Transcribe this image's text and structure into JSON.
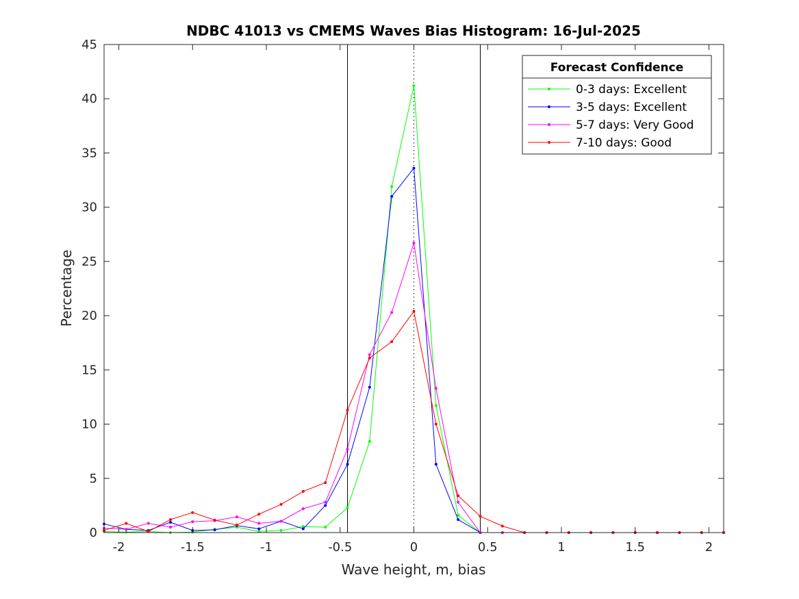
{
  "chart_data": {
    "type": "line",
    "title": "NDBC 41013 vs CMEMS Waves Bias Histogram: 16-Jul-2025",
    "xlabel": "Wave height, m, bias",
    "ylabel": "Percentage",
    "xlim": [
      -2.1,
      2.1
    ],
    "ylim": [
      0,
      45
    ],
    "xticks": [
      -2,
      -1.5,
      -1,
      -0.5,
      0,
      0.5,
      1,
      1.5,
      2
    ],
    "xtick_labels": [
      "-2",
      "-1.5",
      "-1",
      "-0.5",
      "0",
      "0.5",
      "1",
      "1.5",
      "2"
    ],
    "yticks": [
      0,
      5,
      10,
      15,
      20,
      25,
      30,
      35,
      40,
      45
    ],
    "ytick_labels": [
      "0",
      "5",
      "10",
      "15",
      "20",
      "25",
      "30",
      "35",
      "40",
      "45"
    ],
    "grid": false,
    "reference_lines": [
      {
        "x": -0.45,
        "style": "solid"
      },
      {
        "x": 0,
        "style": "dotted"
      },
      {
        "x": 0.45,
        "style": "solid"
      }
    ],
    "legend": {
      "title": "Forecast Confidence",
      "placement": "top-right"
    },
    "x": [
      -2.1,
      -1.95,
      -1.8,
      -1.65,
      -1.5,
      -1.35,
      -1.2,
      -1.05,
      -0.9,
      -0.75,
      -0.6,
      -0.45,
      -0.3,
      -0.15,
      0,
      0.15,
      0.3,
      0.45,
      0.6,
      0.75,
      0.9,
      1.05,
      1.2,
      1.35,
      1.5,
      1.65,
      1.8,
      1.95,
      2.1
    ],
    "series": [
      {
        "name": "0-3 days: Excellent",
        "color": "#00ff00",
        "values": [
          0.1,
          0.05,
          0.1,
          0.0,
          0.05,
          0.3,
          0.5,
          0.1,
          0.2,
          0.55,
          0.5,
          2.3,
          8.4,
          31.9,
          41.2,
          11.7,
          1.6,
          0.0,
          0.0,
          0.0,
          0.0,
          0.0,
          0.0,
          0.0,
          0.0,
          0.0,
          0.0,
          0.0,
          0.0
        ]
      },
      {
        "name": "3-5 days: Excellent",
        "color": "#0000ff",
        "values": [
          0.8,
          0.3,
          0.2,
          0.95,
          0.2,
          0.25,
          0.65,
          0.35,
          1.05,
          0.35,
          2.5,
          6.3,
          13.4,
          31.0,
          33.6,
          6.3,
          1.2,
          0.0,
          0.0,
          0.0,
          0.0,
          0.0,
          0.0,
          0.0,
          0.0,
          0.0,
          0.0,
          0.0,
          0.0
        ]
      },
      {
        "name": "5-7 days: Very Good",
        "color": "#ff00ff",
        "values": [
          0.4,
          0.3,
          0.85,
          0.5,
          1.0,
          1.1,
          1.45,
          0.85,
          1.05,
          2.2,
          2.8,
          7.7,
          16.4,
          20.3,
          26.7,
          13.3,
          2.8,
          0.0,
          0.0,
          0.0,
          0.0,
          0.0,
          0.0,
          0.0,
          0.0,
          0.0,
          0.0,
          0.0,
          0.0
        ]
      },
      {
        "name": "7-10 days: Good",
        "color": "#ff0000",
        "values": [
          0.2,
          0.85,
          0.1,
          1.2,
          1.85,
          1.15,
          0.7,
          1.7,
          2.6,
          3.8,
          4.6,
          11.3,
          16.1,
          17.6,
          20.4,
          10.0,
          3.4,
          1.5,
          0.6,
          0.0,
          0.0,
          0.0,
          0.0,
          0.0,
          0.0,
          0.0,
          0.0,
          0.0,
          0.0
        ]
      }
    ]
  }
}
